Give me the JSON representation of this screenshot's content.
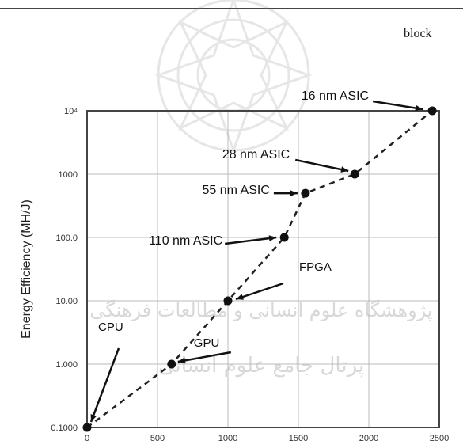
{
  "header": {
    "fragment_text": "block"
  },
  "watermark": {
    "line1": "پژوهشگاه علوم انسانی و مطالعات فرهنگی",
    "line2": "پرتال جامع علوم انسانی"
  },
  "chart_data": {
    "type": "scatter",
    "title": "",
    "xlabel": "",
    "ylabel": "Energy Efficiency (MH/J)",
    "xlim": [
      0,
      2500
    ],
    "ylim": [
      0.1,
      10000
    ],
    "yscale": "log",
    "grid": true,
    "line_style": "dashed",
    "xticks": [
      0,
      500,
      1000,
      1500,
      2000,
      2500
    ],
    "xtick_labels": [
      "0",
      "500",
      "1000",
      "1500",
      "2000",
      "2500"
    ],
    "yticks": [
      0.1,
      1,
      10,
      100,
      1000,
      10000
    ],
    "ytick_labels": [
      "0.1000",
      "1.000",
      "10.00",
      "100.0",
      "1000",
      "10⁴"
    ],
    "points": [
      {
        "x": 0,
        "y": 0.1,
        "label": "CPU"
      },
      {
        "x": 600,
        "y": 1,
        "label": "GPU"
      },
      {
        "x": 1000,
        "y": 10,
        "label": "FPGA"
      },
      {
        "x": 1400,
        "y": 100,
        "label": "110 nm ASIC"
      },
      {
        "x": 1550,
        "y": 500,
        "label": "55 nm ASIC"
      },
      {
        "x": 1900,
        "y": 1000,
        "label": "28 nm ASIC"
      },
      {
        "x": 2450,
        "y": 10000,
        "label": "16 nm ASIC"
      }
    ]
  }
}
